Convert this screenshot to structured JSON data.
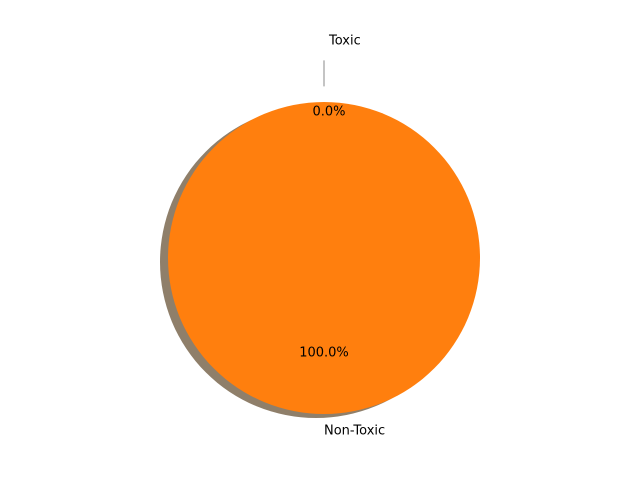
{
  "chart_data": {
    "type": "pie",
    "title": "",
    "slices": [
      {
        "label": "Toxic",
        "value": 0.0,
        "pct_label": "0.0%",
        "color": "#1f77b4",
        "exploded": true
      },
      {
        "label": "Non-Toxic",
        "value": 100.0,
        "pct_label": "100.0%",
        "color": "#ff7f0e",
        "exploded": false
      }
    ],
    "shadow": true,
    "shadow_color": "#8f7f6a",
    "leader_line_color": "#8a8a8a"
  }
}
